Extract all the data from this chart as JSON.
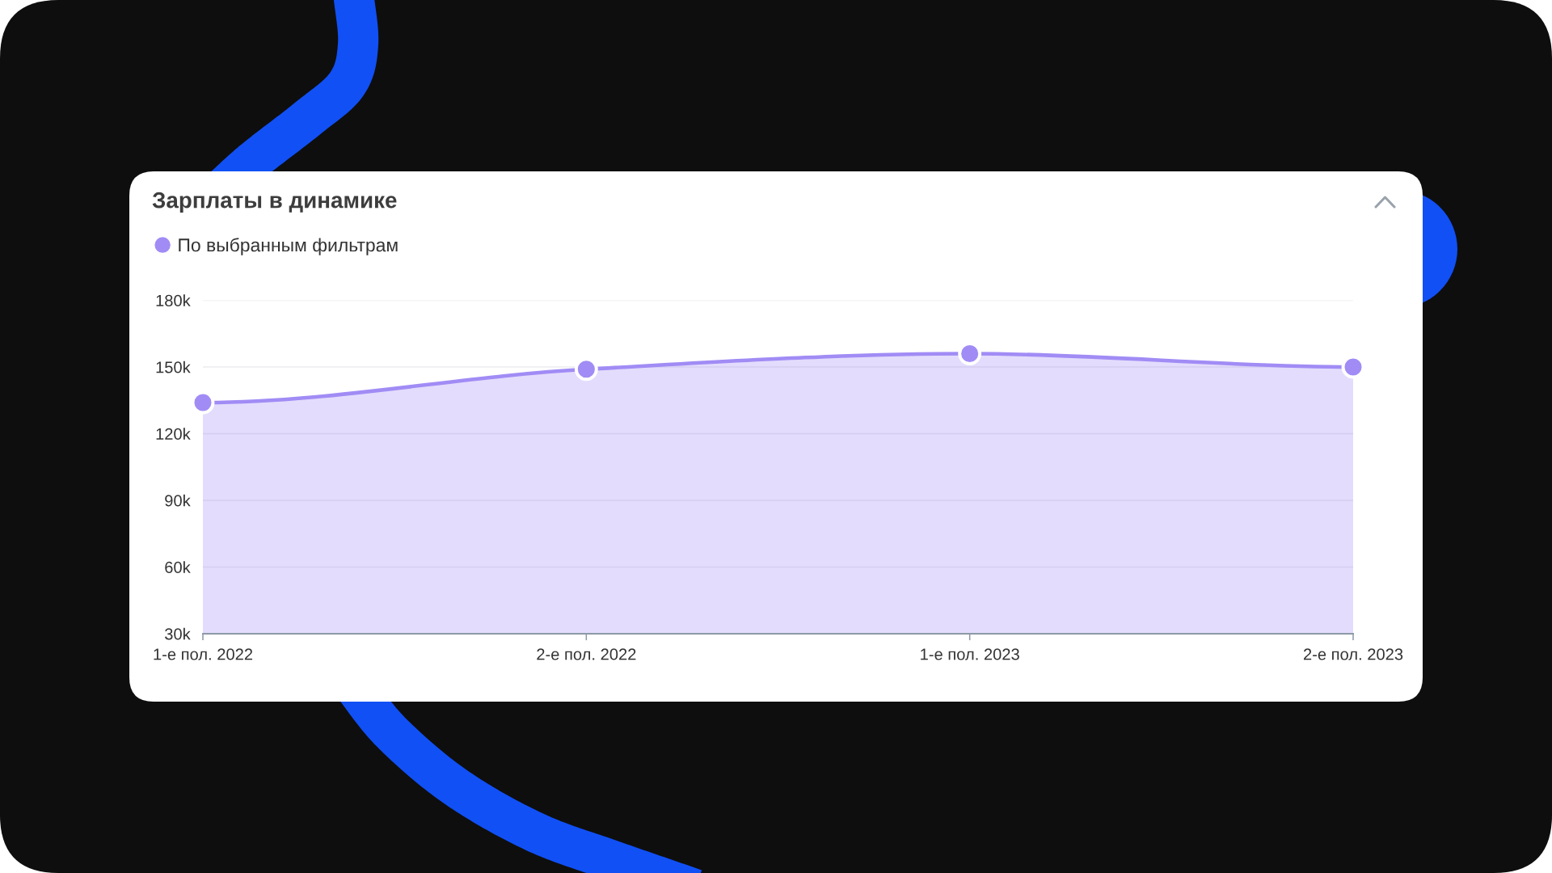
{
  "chart_data": {
    "type": "area",
    "title": "Зарплаты в динамике",
    "categories": [
      "1-е пол. 2022",
      "2-е пол. 2022",
      "1-е пол. 2023",
      "2-е пол. 2023"
    ],
    "series": [
      {
        "name": "По выбранным фильтрам",
        "color": "#a18cf5",
        "values": [
          134,
          149,
          156,
          150
        ]
      }
    ],
    "ylim": [
      30,
      180
    ],
    "yticks": [
      {
        "value": 30,
        "label": "30k"
      },
      {
        "value": 60,
        "label": "60k"
      },
      {
        "value": 90,
        "label": "90k"
      },
      {
        "value": 120,
        "label": "120k"
      },
      {
        "value": 150,
        "label": "150k"
      },
      {
        "value": 180,
        "label": "180k"
      }
    ],
    "grid": "y",
    "legend": "top left",
    "marker": "circle"
  }
}
